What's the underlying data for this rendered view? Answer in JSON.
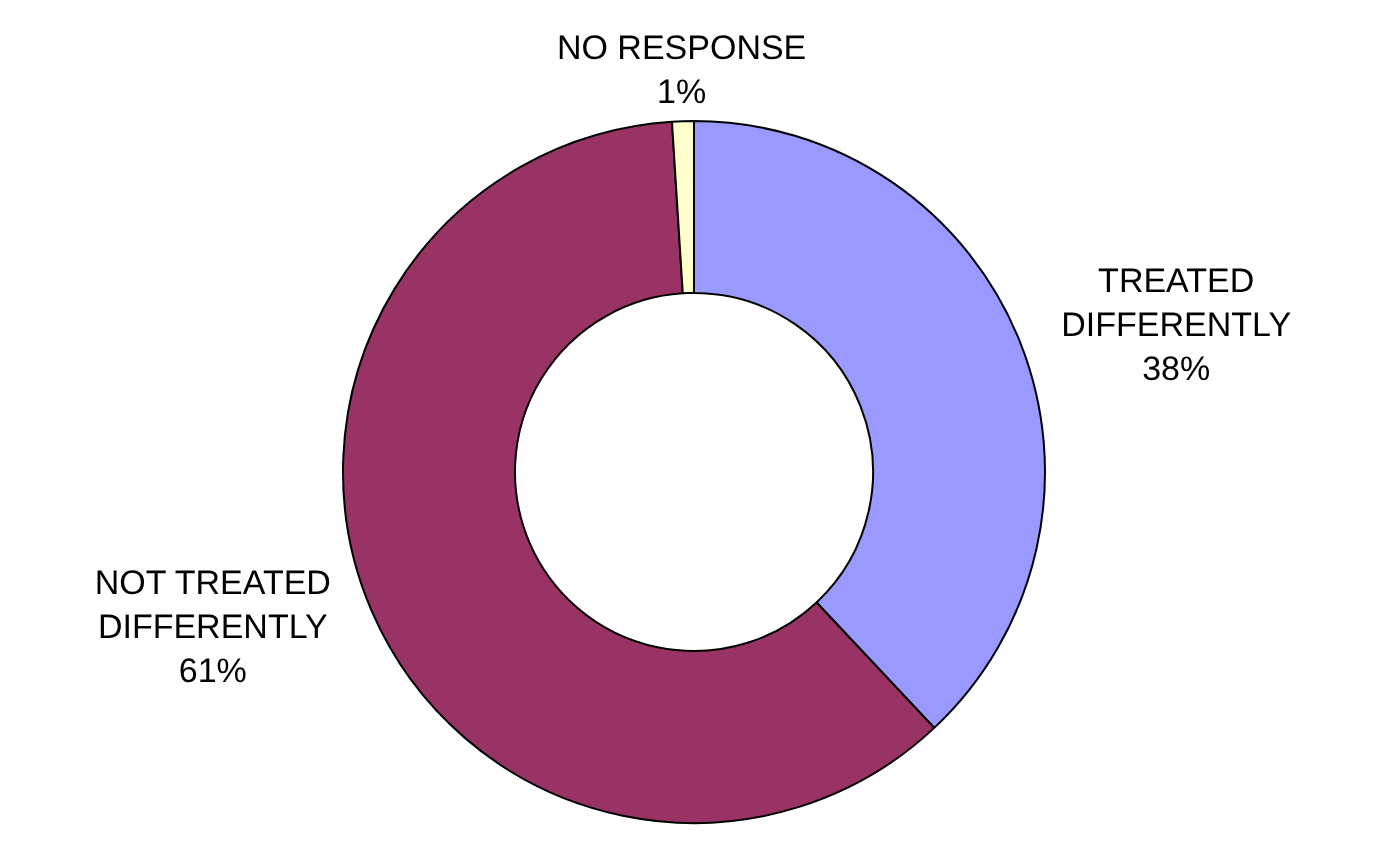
{
  "chart_data": {
    "type": "donut",
    "categories": [
      "TREATED DIFFERENTLY",
      "NOT TREATED DIFFERENTLY",
      "NO RESPONSE"
    ],
    "values": [
      38,
      61,
      1
    ],
    "colors": [
      "#9999ff",
      "#993366",
      "#ffffcc"
    ],
    "value_labels": [
      "38%",
      "61%",
      "1%"
    ],
    "legend": false
  }
}
